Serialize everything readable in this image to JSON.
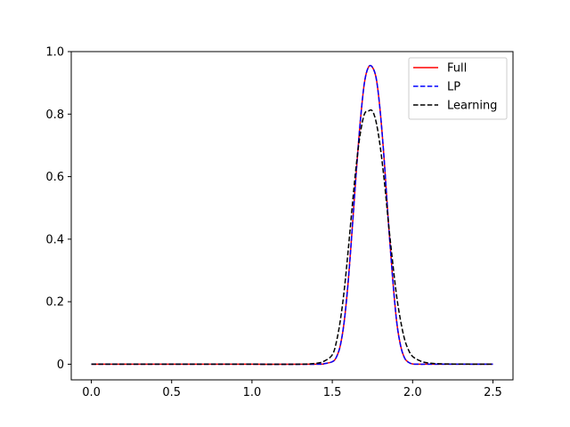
{
  "chart_data": {
    "type": "line",
    "title": "",
    "xlabel": "",
    "ylabel": "",
    "xlim": [
      -0.125,
      2.625
    ],
    "ylim": [
      -0.05,
      1.0
    ],
    "xticks": [
      0.0,
      0.5,
      1.0,
      1.5,
      2.0,
      2.5
    ],
    "xtick_labels": [
      "0.0",
      "0.5",
      "1.0",
      "1.5",
      "2.0",
      "2.5"
    ],
    "yticks": [
      0,
      0.2,
      0.4,
      0.6,
      0.8,
      1.0
    ],
    "ytick_labels": [
      "0",
      "0.2",
      "0.4",
      "0.6",
      "0.8",
      "1.0"
    ],
    "grid": false,
    "legend_position": "top-right",
    "series": [
      {
        "name": "Full",
        "color": "#ff0000",
        "style": "solid",
        "x": [
          0.0,
          0.5,
          1.0,
          1.4,
          1.45,
          1.5,
          1.525,
          1.55,
          1.575,
          1.6,
          1.625,
          1.65,
          1.675,
          1.7,
          1.725,
          1.75,
          1.775,
          1.8,
          1.825,
          1.85,
          1.875,
          1.9,
          1.925,
          1.95,
          1.975,
          2.0,
          2.05,
          2.1,
          2.5
        ],
        "y": [
          0.0,
          0.0,
          0.0,
          0.0,
          0.002,
          0.008,
          0.022,
          0.06,
          0.14,
          0.27,
          0.44,
          0.62,
          0.78,
          0.9,
          0.95,
          0.95,
          0.91,
          0.8,
          0.64,
          0.45,
          0.28,
          0.14,
          0.06,
          0.02,
          0.006,
          0.001,
          0.0,
          0.0,
          0.0
        ]
      },
      {
        "name": "LP",
        "color": "#0000ff",
        "style": "dashed",
        "x": [
          0.0,
          0.5,
          1.0,
          1.4,
          1.45,
          1.5,
          1.525,
          1.55,
          1.575,
          1.6,
          1.625,
          1.65,
          1.675,
          1.7,
          1.725,
          1.75,
          1.775,
          1.8,
          1.825,
          1.85,
          1.875,
          1.9,
          1.925,
          1.95,
          1.975,
          2.0,
          2.05,
          2.1,
          2.5
        ],
        "y": [
          0.0,
          0.0,
          0.0,
          0.0,
          0.002,
          0.008,
          0.022,
          0.06,
          0.14,
          0.27,
          0.44,
          0.62,
          0.78,
          0.9,
          0.95,
          0.95,
          0.91,
          0.8,
          0.64,
          0.45,
          0.28,
          0.14,
          0.06,
          0.02,
          0.006,
          0.001,
          0.0,
          0.0,
          0.0
        ]
      },
      {
        "name": "Learning",
        "color": "#000000",
        "style": "dashed",
        "x": [
          0.0,
          0.5,
          1.0,
          1.3,
          1.4,
          1.45,
          1.5,
          1.525,
          1.55,
          1.575,
          1.6,
          1.625,
          1.65,
          1.675,
          1.7,
          1.725,
          1.75,
          1.775,
          1.8,
          1.825,
          1.85,
          1.875,
          1.9,
          1.925,
          1.95,
          1.975,
          2.0,
          2.05,
          2.1,
          2.2,
          2.5
        ],
        "y": [
          0.0,
          0.0,
          0.0,
          0.0,
          0.003,
          0.01,
          0.03,
          0.07,
          0.14,
          0.24,
          0.37,
          0.51,
          0.64,
          0.74,
          0.8,
          0.81,
          0.81,
          0.77,
          0.69,
          0.58,
          0.45,
          0.33,
          0.22,
          0.14,
          0.08,
          0.045,
          0.025,
          0.01,
          0.004,
          0.001,
          0.0
        ]
      }
    ]
  }
}
